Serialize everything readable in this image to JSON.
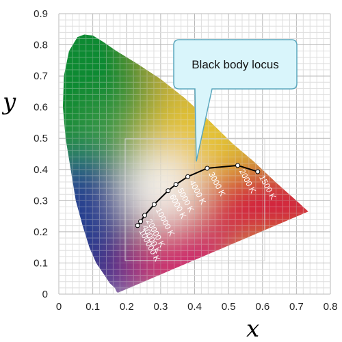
{
  "chart_data": {
    "type": "scatter",
    "title": "",
    "xlabel": "x",
    "ylabel": "y",
    "xlim": [
      0,
      0.8
    ],
    "ylim": [
      0,
      0.9
    ],
    "x_ticks": [
      "0",
      "0.1",
      "0.2",
      "0.3",
      "0.4",
      "0.5",
      "0.6",
      "0.7",
      "0.8"
    ],
    "y_ticks": [
      "0",
      "0.1",
      "0.2",
      "0.3",
      "0.4",
      "0.5",
      "0.6",
      "0.7",
      "0.8",
      "0.9"
    ],
    "grid": true,
    "spectral_locus": [
      [
        0.175,
        0.005
      ],
      [
        0.173,
        0.005
      ],
      [
        0.17,
        0.008
      ],
      [
        0.165,
        0.02
      ],
      [
        0.15,
        0.035
      ],
      [
        0.135,
        0.06
      ],
      [
        0.11,
        0.1
      ],
      [
        0.09,
        0.15
      ],
      [
        0.07,
        0.22
      ],
      [
        0.05,
        0.3
      ],
      [
        0.035,
        0.4
      ],
      [
        0.02,
        0.5
      ],
      [
        0.012,
        0.6
      ],
      [
        0.015,
        0.7
      ],
      [
        0.03,
        0.78
      ],
      [
        0.055,
        0.825
      ],
      [
        0.075,
        0.833
      ],
      [
        0.1,
        0.83
      ],
      [
        0.13,
        0.81
      ],
      [
        0.17,
        0.78
      ],
      [
        0.23,
        0.74
      ],
      [
        0.3,
        0.69
      ],
      [
        0.37,
        0.63
      ],
      [
        0.44,
        0.56
      ],
      [
        0.51,
        0.485
      ],
      [
        0.575,
        0.425
      ],
      [
        0.64,
        0.358
      ],
      [
        0.7,
        0.3
      ],
      [
        0.735,
        0.265
      ]
    ],
    "blackbody_locus": {
      "label": "Black body locus",
      "points": [
        {
          "temp": "1500 K",
          "x": 0.586,
          "y": 0.393
        },
        {
          "temp": "2000 K",
          "x": 0.527,
          "y": 0.413
        },
        {
          "temp": "3000 K",
          "x": 0.437,
          "y": 0.404
        },
        {
          "temp": "4000 K",
          "x": 0.38,
          "y": 0.377
        },
        {
          "temp": "5000 K",
          "x": 0.345,
          "y": 0.352
        },
        {
          "temp": "6000 K",
          "x": 0.322,
          "y": 0.332
        },
        {
          "temp": "10000 K",
          "x": 0.281,
          "y": 0.288
        },
        {
          "temp": "20000 K",
          "x": 0.253,
          "y": 0.253
        },
        {
          "temp": "40000 K",
          "x": 0.241,
          "y": 0.233
        },
        {
          "temp": "100000 K",
          "x": 0.232,
          "y": 0.22
        }
      ]
    }
  }
}
